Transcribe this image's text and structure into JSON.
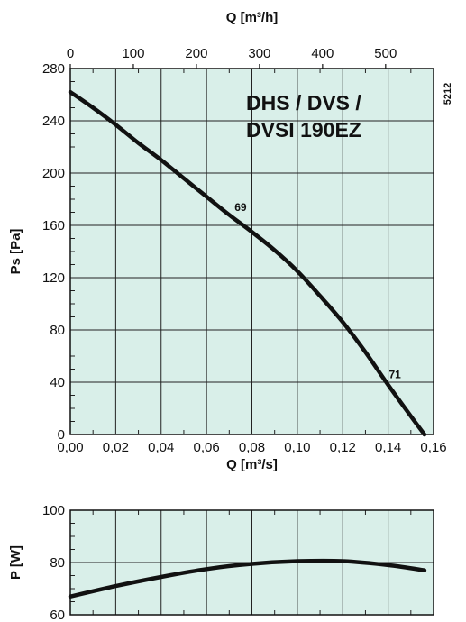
{
  "chart_data": [
    {
      "type": "line",
      "title_lines": [
        "DHS / DVS /",
        "DVSI 190EZ"
      ],
      "code": "5212",
      "xlabel": "Q [m³/s]",
      "x2label": "Q [m³/h]",
      "ylabel": "Ps [Pa]",
      "xlim": [
        0,
        0.16
      ],
      "ylim": [
        0,
        280
      ],
      "x2lim": [
        0,
        576
      ],
      "x_ticks": [
        "0,00",
        "0,02",
        "0,04",
        "0,06",
        "0,08",
        "0,10",
        "0,12",
        "0,14",
        "0,16"
      ],
      "x2_ticks": [
        "0",
        "100",
        "200",
        "300",
        "400",
        "500"
      ],
      "y_ticks": [
        "0",
        "40",
        "80",
        "120",
        "160",
        "200",
        "240",
        "280"
      ],
      "grid": true,
      "background": "#d9efe9",
      "series": [
        {
          "x": [
            0,
            0.01,
            0.02,
            0.03,
            0.04,
            0.05,
            0.06,
            0.07,
            0.08,
            0.09,
            0.1,
            0.11,
            0.12,
            0.13,
            0.14,
            0.15,
            0.156
          ],
          "values": [
            262,
            250,
            237,
            223,
            210,
            196,
            182,
            168,
            155,
            141,
            125,
            106,
            86,
            63,
            38,
            14,
            0
          ]
        }
      ],
      "annotations": [
        {
          "text": "69",
          "x": 0.075,
          "y": 171
        },
        {
          "text": "71",
          "x": 0.143,
          "y": 43
        }
      ]
    },
    {
      "type": "line",
      "ylabel": "P [W]",
      "xlim": [
        0,
        0.16
      ],
      "ylim": [
        60,
        100
      ],
      "y_ticks": [
        "60",
        "80",
        "100"
      ],
      "grid": true,
      "background": "#d9efe9",
      "series": [
        {
          "x": [
            0,
            0.02,
            0.04,
            0.06,
            0.08,
            0.1,
            0.12,
            0.14,
            0.156
          ],
          "values": [
            67,
            71,
            74.5,
            77.5,
            79.5,
            80.5,
            80.5,
            79,
            77
          ]
        }
      ]
    }
  ]
}
